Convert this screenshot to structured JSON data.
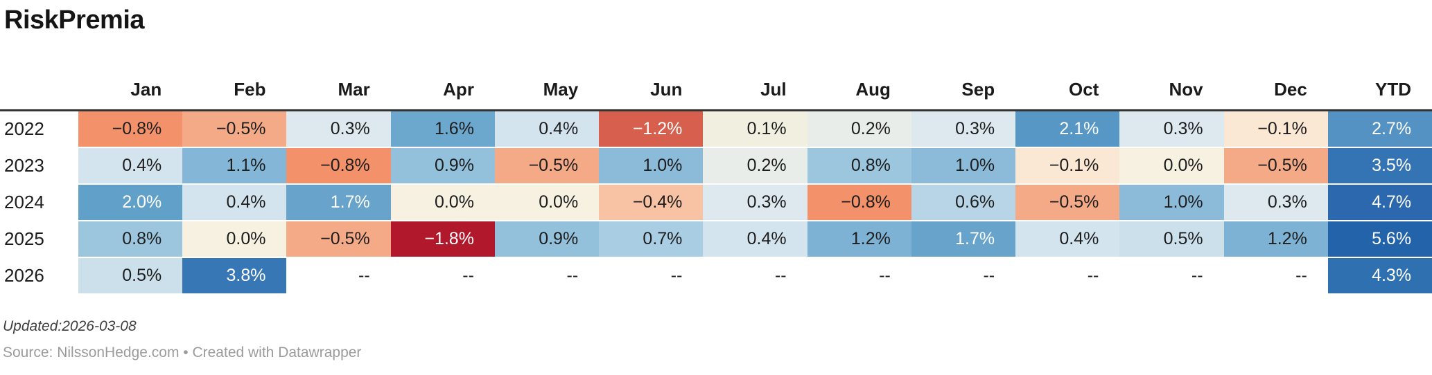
{
  "title": "RiskPremia",
  "table": {
    "columns": [
      "Jan",
      "Feb",
      "Mar",
      "Apr",
      "May",
      "Jun",
      "Jul",
      "Aug",
      "Sep",
      "Oct",
      "Nov",
      "Dec",
      "YTD"
    ],
    "rows": [
      {
        "year": "2022",
        "cells": [
          {
            "text": "−0.8%",
            "bg": "#f2916a",
            "fg": "#1d1d1d"
          },
          {
            "text": "−0.5%",
            "bg": "#f5aa87",
            "fg": "#1d1d1d"
          },
          {
            "text": "0.3%",
            "bg": "#dde9ef",
            "fg": "#1d1d1d"
          },
          {
            "text": "1.6%",
            "bg": "#6ca7ce",
            "fg": "#1d1d1d"
          },
          {
            "text": "0.4%",
            "bg": "#d4e4ee",
            "fg": "#1d1d1d"
          },
          {
            "text": "−1.2%",
            "bg": "#d6604d",
            "fg": "#ffffff"
          },
          {
            "text": "0.1%",
            "bg": "#f1efe0",
            "fg": "#1d1d1d"
          },
          {
            "text": "0.2%",
            "bg": "#e8ede9",
            "fg": "#1d1d1d"
          },
          {
            "text": "0.3%",
            "bg": "#dde9ef",
            "fg": "#1d1d1d"
          },
          {
            "text": "2.1%",
            "bg": "#5797c5",
            "fg": "#ffffff"
          },
          {
            "text": "0.3%",
            "bg": "#dde9ef",
            "fg": "#1d1d1d"
          },
          {
            "text": "−0.1%",
            "bg": "#fae7d4",
            "fg": "#1d1d1d"
          },
          {
            "text": "2.7%",
            "bg": "#5392c3",
            "fg": "#ffffff"
          }
        ]
      },
      {
        "year": "2023",
        "cells": [
          {
            "text": "0.4%",
            "bg": "#d4e4ee",
            "fg": "#1d1d1d"
          },
          {
            "text": "1.1%",
            "bg": "#84b7d7",
            "fg": "#1d1d1d"
          },
          {
            "text": "−0.8%",
            "bg": "#f2916a",
            "fg": "#1d1d1d"
          },
          {
            "text": "0.9%",
            "bg": "#93c0db",
            "fg": "#1d1d1d"
          },
          {
            "text": "−0.5%",
            "bg": "#f5aa87",
            "fg": "#1d1d1d"
          },
          {
            "text": "1.0%",
            "bg": "#8cbbd9",
            "fg": "#1d1d1d"
          },
          {
            "text": "0.2%",
            "bg": "#e8ede9",
            "fg": "#1d1d1d"
          },
          {
            "text": "0.8%",
            "bg": "#9cc5de",
            "fg": "#1d1d1d"
          },
          {
            "text": "1.0%",
            "bg": "#8cbbd9",
            "fg": "#1d1d1d"
          },
          {
            "text": "−0.1%",
            "bg": "#fae7d4",
            "fg": "#1d1d1d"
          },
          {
            "text": "0.0%",
            "bg": "#f6f1e1",
            "fg": "#1d1d1d"
          },
          {
            "text": "−0.5%",
            "bg": "#f5aa87",
            "fg": "#1d1d1d"
          },
          {
            "text": "3.5%",
            "bg": "#3574b4",
            "fg": "#ffffff"
          }
        ]
      },
      {
        "year": "2024",
        "cells": [
          {
            "text": "2.0%",
            "bg": "#60a0c9",
            "fg": "#ffffff"
          },
          {
            "text": "0.4%",
            "bg": "#d4e4ee",
            "fg": "#1d1d1d"
          },
          {
            "text": "1.7%",
            "bg": "#67a3cb",
            "fg": "#ffffff"
          },
          {
            "text": "0.0%",
            "bg": "#f6f1e1",
            "fg": "#1d1d1d"
          },
          {
            "text": "0.0%",
            "bg": "#f6f1e1",
            "fg": "#1d1d1d"
          },
          {
            "text": "−0.4%",
            "bg": "#f8c3a5",
            "fg": "#1d1d1d"
          },
          {
            "text": "0.3%",
            "bg": "#dde9ef",
            "fg": "#1d1d1d"
          },
          {
            "text": "−0.8%",
            "bg": "#f2916a",
            "fg": "#1d1d1d"
          },
          {
            "text": "0.6%",
            "bg": "#b7d5e6",
            "fg": "#1d1d1d"
          },
          {
            "text": "−0.5%",
            "bg": "#f5aa87",
            "fg": "#1d1d1d"
          },
          {
            "text": "1.0%",
            "bg": "#8cbbd9",
            "fg": "#1d1d1d"
          },
          {
            "text": "0.3%",
            "bg": "#dde9ef",
            "fg": "#1d1d1d"
          },
          {
            "text": "4.7%",
            "bg": "#2c68ad",
            "fg": "#ffffff"
          }
        ]
      },
      {
        "year": "2025",
        "cells": [
          {
            "text": "0.8%",
            "bg": "#9cc5de",
            "fg": "#1d1d1d"
          },
          {
            "text": "0.0%",
            "bg": "#f6f1e1",
            "fg": "#1d1d1d"
          },
          {
            "text": "−0.5%",
            "bg": "#f5aa87",
            "fg": "#1d1d1d"
          },
          {
            "text": "−1.8%",
            "bg": "#b2182b",
            "fg": "#ffffff"
          },
          {
            "text": "0.9%",
            "bg": "#93c0db",
            "fg": "#1d1d1d"
          },
          {
            "text": "0.7%",
            "bg": "#a9cde2",
            "fg": "#1d1d1d"
          },
          {
            "text": "0.4%",
            "bg": "#d4e4ee",
            "fg": "#1d1d1d"
          },
          {
            "text": "1.2%",
            "bg": "#7db2d4",
            "fg": "#1d1d1d"
          },
          {
            "text": "1.7%",
            "bg": "#67a3cb",
            "fg": "#ffffff"
          },
          {
            "text": "0.4%",
            "bg": "#d4e4ee",
            "fg": "#1d1d1d"
          },
          {
            "text": "0.5%",
            "bg": "#cce0ec",
            "fg": "#1d1d1d"
          },
          {
            "text": "1.2%",
            "bg": "#7db2d4",
            "fg": "#1d1d1d"
          },
          {
            "text": "5.6%",
            "bg": "#2363aa",
            "fg": "#ffffff"
          }
        ]
      },
      {
        "year": "2026",
        "cells": [
          {
            "text": "0.5%",
            "bg": "#cce0ec",
            "fg": "#1d1d1d"
          },
          {
            "text": "3.8%",
            "bg": "#3877b6",
            "fg": "#ffffff"
          },
          {
            "text": "--",
            "bg": "#ffffff",
            "fg": "#1d1d1d"
          },
          {
            "text": "--",
            "bg": "#ffffff",
            "fg": "#1d1d1d"
          },
          {
            "text": "--",
            "bg": "#ffffff",
            "fg": "#1d1d1d"
          },
          {
            "text": "--",
            "bg": "#ffffff",
            "fg": "#1d1d1d"
          },
          {
            "text": "--",
            "bg": "#ffffff",
            "fg": "#1d1d1d"
          },
          {
            "text": "--",
            "bg": "#ffffff",
            "fg": "#1d1d1d"
          },
          {
            "text": "--",
            "bg": "#ffffff",
            "fg": "#1d1d1d"
          },
          {
            "text": "--",
            "bg": "#ffffff",
            "fg": "#1d1d1d"
          },
          {
            "text": "--",
            "bg": "#ffffff",
            "fg": "#1d1d1d"
          },
          {
            "text": "--",
            "bg": "#ffffff",
            "fg": "#1d1d1d"
          },
          {
            "text": "4.3%",
            "bg": "#2f70b1",
            "fg": "#ffffff"
          }
        ]
      }
    ]
  },
  "footer": {
    "updated": "Updated:2026-03-08",
    "source": "Source: NilssonHedge.com • Created with Datawrapper"
  },
  "colors": {
    "title": "#151515",
    "header_border": "#333333",
    "negative_strong": "#b2182b",
    "negative_mid": "#d6604d",
    "neutral": "#f6f1e1",
    "positive_strong": "#2166ac"
  },
  "chart_data": {
    "type": "heatmap",
    "title": "RiskPremia",
    "x_categories": [
      "Jan",
      "Feb",
      "Mar",
      "Apr",
      "May",
      "Jun",
      "Jul",
      "Aug",
      "Sep",
      "Oct",
      "Nov",
      "Dec"
    ],
    "y_categories": [
      "2022",
      "2023",
      "2024",
      "2025",
      "2026"
    ],
    "unit": "%",
    "series": [
      {
        "name": "2022",
        "monthly": [
          -0.8,
          -0.5,
          0.3,
          1.6,
          0.4,
          -1.2,
          0.1,
          0.2,
          0.3,
          2.1,
          0.3,
          -0.1
        ],
        "ytd": 2.7
      },
      {
        "name": "2023",
        "monthly": [
          0.4,
          1.1,
          -0.8,
          0.9,
          -0.5,
          1.0,
          0.2,
          0.8,
          1.0,
          -0.1,
          0.0,
          -0.5
        ],
        "ytd": 3.5
      },
      {
        "name": "2024",
        "monthly": [
          2.0,
          0.4,
          1.7,
          0.0,
          0.0,
          -0.4,
          0.3,
          -0.8,
          0.6,
          -0.5,
          1.0,
          0.3
        ],
        "ytd": 4.7
      },
      {
        "name": "2025",
        "monthly": [
          0.8,
          0.0,
          -0.5,
          -1.8,
          0.9,
          0.7,
          0.4,
          1.2,
          1.7,
          0.4,
          0.5,
          1.2
        ],
        "ytd": 5.6
      },
      {
        "name": "2026",
        "monthly": [
          0.5,
          3.8,
          null,
          null,
          null,
          null,
          null,
          null,
          null,
          null,
          null,
          null
        ],
        "ytd": 4.3
      }
    ],
    "missing_marker": "--",
    "color_scale": {
      "type": "diverging",
      "negative_max": "#b2182b",
      "neutral": "#f6f1e1",
      "positive_max": "#2166ac"
    },
    "legend_position": "none",
    "grid": false,
    "updated": "2026-03-08",
    "source": "NilssonHedge.com",
    "tool": "Datawrapper"
  }
}
